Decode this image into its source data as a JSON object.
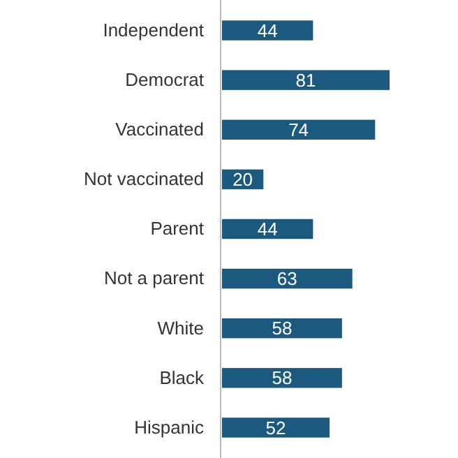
{
  "chart_data": {
    "type": "bar",
    "orientation": "horizontal",
    "categories": [
      "Independent",
      "Democrat",
      "Vaccinated",
      "Not vaccinated",
      "Parent",
      "Not a parent",
      "White",
      "Black",
      "Hispanic"
    ],
    "values": [
      44,
      81,
      74,
      20,
      44,
      63,
      58,
      58,
      52
    ],
    "color": "#1b5a7e",
    "data_labels": true
  }
}
